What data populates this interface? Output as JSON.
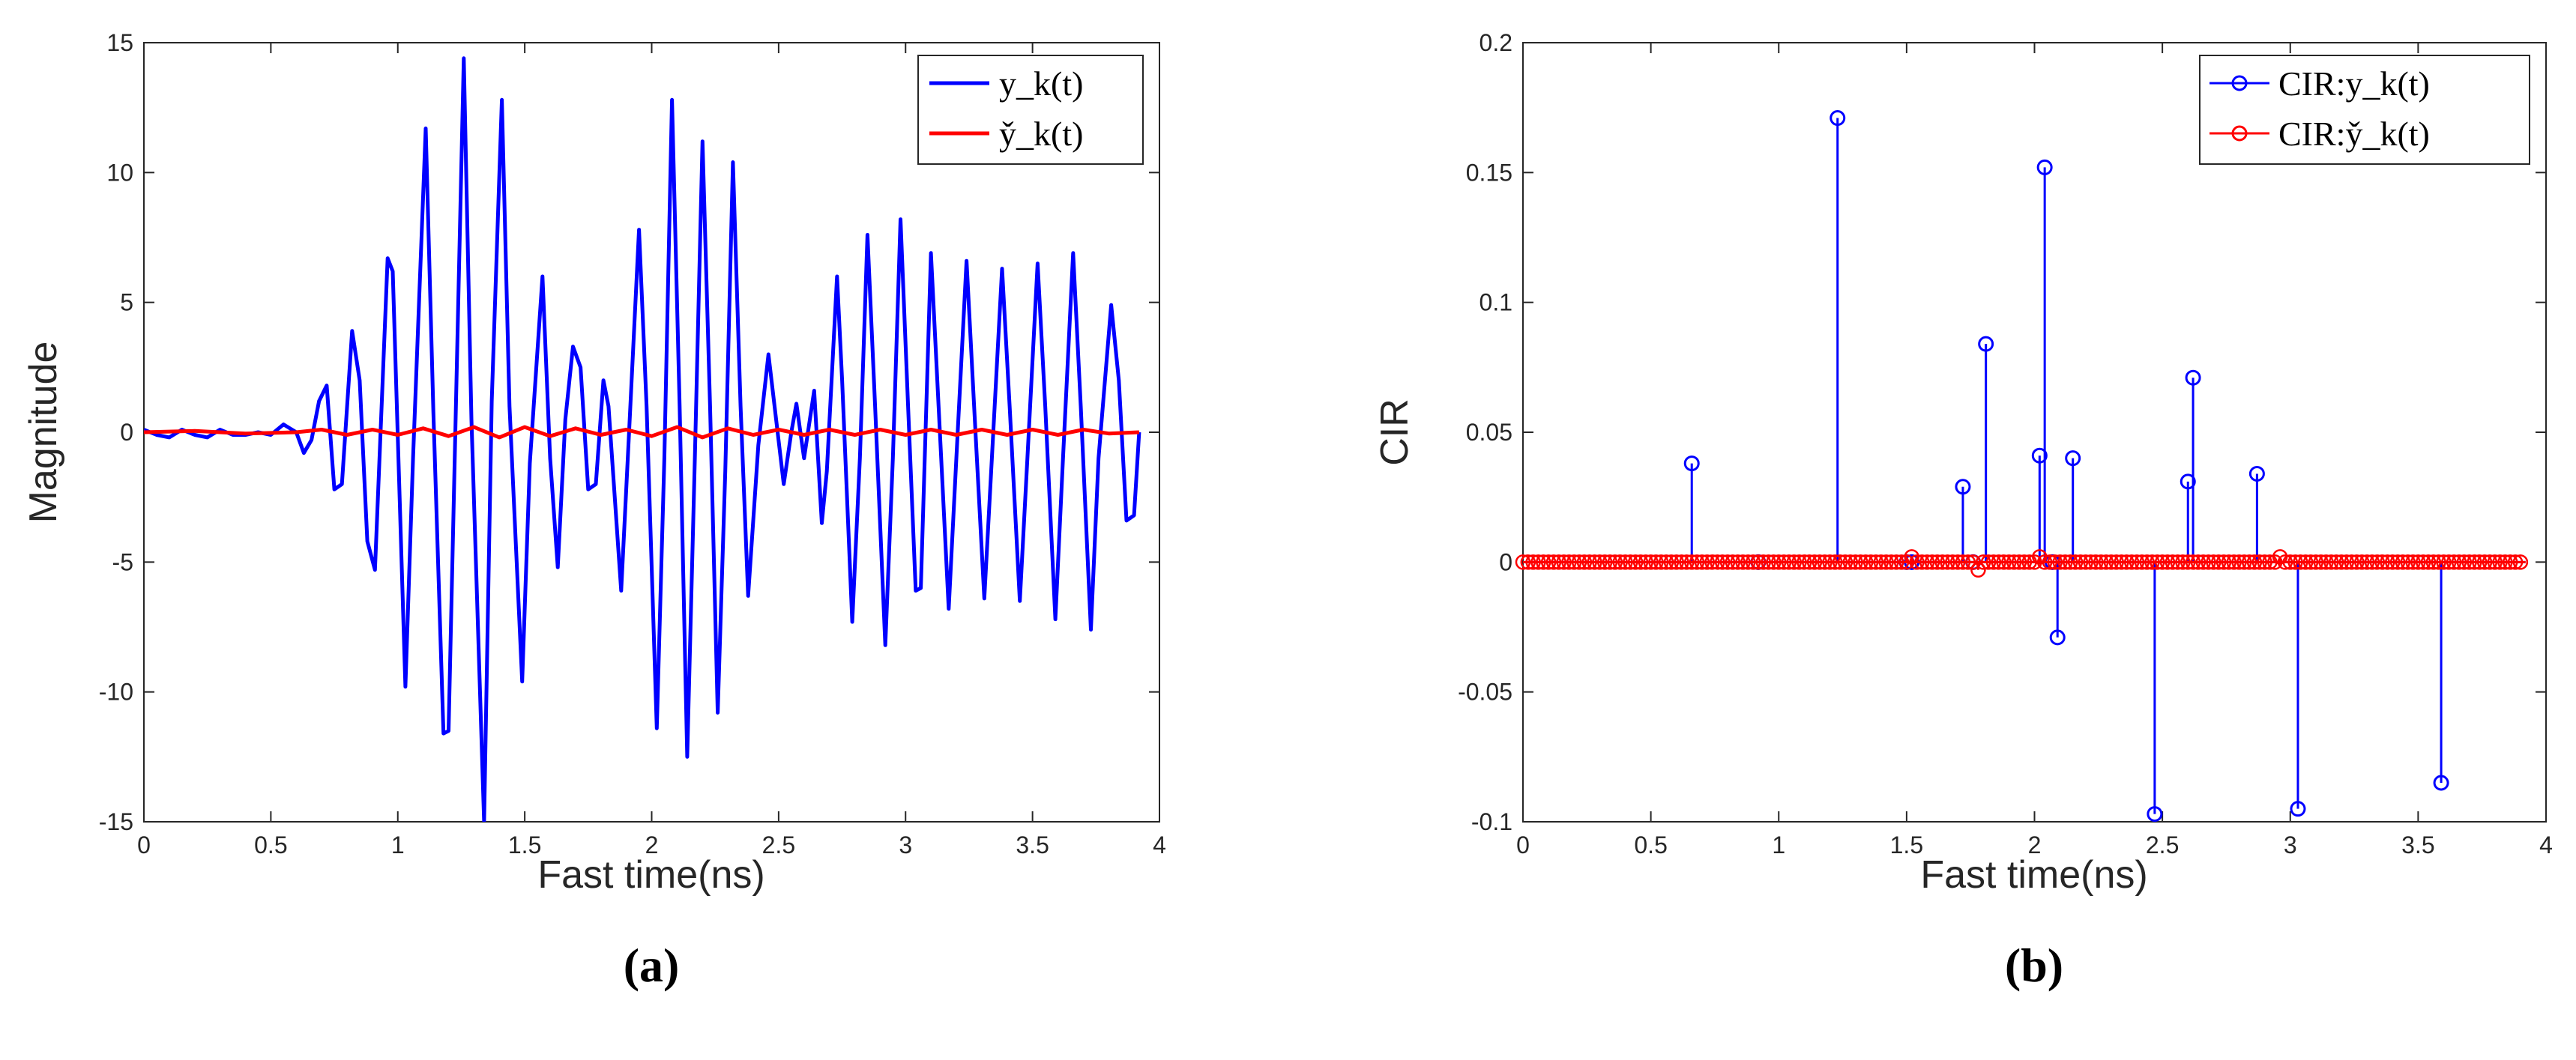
{
  "chart_data": [
    {
      "type": "line",
      "xlabel": "Fast time(ns)",
      "ylabel": "Magnitude",
      "caption": "(a)",
      "xlim": [
        0,
        4
      ],
      "ylim": [
        -15,
        15
      ],
      "xticks": [
        "0",
        "0.5",
        "1",
        "1.5",
        "2",
        "2.5",
        "3",
        "3.5",
        "4"
      ],
      "yticks": [
        "-15",
        "-10",
        "-5",
        "0",
        "5",
        "10",
        "15"
      ],
      "legend_position": "top-right",
      "series": [
        {
          "name": "y_k(t)",
          "color": "#0000ff",
          "points": [
            [
              0.0,
              0.1
            ],
            [
              0.05,
              -0.1
            ],
            [
              0.1,
              -0.2
            ],
            [
              0.15,
              0.1
            ],
            [
              0.2,
              -0.1
            ],
            [
              0.25,
              -0.2
            ],
            [
              0.3,
              0.1
            ],
            [
              0.35,
              -0.1
            ],
            [
              0.4,
              -0.1
            ],
            [
              0.45,
              0.0
            ],
            [
              0.5,
              -0.1
            ],
            [
              0.55,
              0.3
            ],
            [
              0.6,
              0.0
            ],
            [
              0.63,
              -0.8
            ],
            [
              0.66,
              -0.3
            ],
            [
              0.69,
              1.2
            ],
            [
              0.72,
              1.8
            ],
            [
              0.75,
              -2.2
            ],
            [
              0.78,
              -2.0
            ],
            [
              0.82,
              3.9
            ],
            [
              0.85,
              2.0
            ],
            [
              0.88,
              -4.2
            ],
            [
              0.91,
              -5.3
            ],
            [
              0.96,
              6.7
            ],
            [
              0.98,
              6.2
            ],
            [
              1.03,
              -9.8
            ],
            [
              1.06,
              -1.0
            ],
            [
              1.11,
              11.7
            ],
            [
              1.14,
              0.8
            ],
            [
              1.18,
              -11.6
            ],
            [
              1.2,
              -11.5
            ],
            [
              1.26,
              14.4
            ],
            [
              1.29,
              0.5
            ],
            [
              1.34,
              -15.0
            ],
            [
              1.37,
              1.2
            ],
            [
              1.41,
              12.8
            ],
            [
              1.44,
              1.0
            ],
            [
              1.49,
              -9.6
            ],
            [
              1.52,
              -1.2
            ],
            [
              1.57,
              6.0
            ],
            [
              1.6,
              -1.0
            ],
            [
              1.63,
              -5.2
            ],
            [
              1.66,
              0.5
            ],
            [
              1.69,
              3.3
            ],
            [
              1.72,
              2.5
            ],
            [
              1.75,
              -2.2
            ],
            [
              1.78,
              -2.0
            ],
            [
              1.81,
              2.0
            ],
            [
              1.83,
              1.0
            ],
            [
              1.88,
              -6.1
            ],
            [
              1.91,
              -0.2
            ],
            [
              1.95,
              7.8
            ],
            [
              1.98,
              1.0
            ],
            [
              2.02,
              -11.4
            ],
            [
              2.05,
              -1.0
            ],
            [
              2.08,
              12.8
            ],
            [
              2.11,
              1.0
            ],
            [
              2.14,
              -12.5
            ],
            [
              2.17,
              -1.0
            ],
            [
              2.2,
              11.2
            ],
            [
              2.23,
              1.0
            ],
            [
              2.26,
              -10.8
            ],
            [
              2.29,
              -1.5
            ],
            [
              2.32,
              10.4
            ],
            [
              2.35,
              1.0
            ],
            [
              2.38,
              -6.3
            ],
            [
              2.42,
              -0.5
            ],
            [
              2.46,
              3.0
            ],
            [
              2.49,
              0.5
            ],
            [
              2.52,
              -2.0
            ],
            [
              2.55,
              0.0
            ],
            [
              2.57,
              1.1
            ],
            [
              2.6,
              -1.0
            ],
            [
              2.64,
              1.6
            ],
            [
              2.67,
              -3.5
            ],
            [
              2.69,
              -1.5
            ],
            [
              2.73,
              6.0
            ],
            [
              2.75,
              2.0
            ],
            [
              2.79,
              -7.3
            ],
            [
              2.82,
              -1.0
            ],
            [
              2.85,
              7.6
            ],
            [
              2.88,
              1.0
            ],
            [
              2.92,
              -8.2
            ],
            [
              2.95,
              -1.0
            ],
            [
              2.98,
              8.2
            ],
            [
              3.01,
              1.0
            ],
            [
              3.04,
              -6.1
            ],
            [
              3.06,
              -6.0
            ],
            [
              3.1,
              6.9
            ],
            [
              3.13,
              1.0
            ],
            [
              3.17,
              -6.8
            ],
            [
              3.2,
              -1.0
            ],
            [
              3.24,
              6.6
            ],
            [
              3.27,
              1.0
            ],
            [
              3.31,
              -6.4
            ],
            [
              3.34,
              -1.0
            ],
            [
              3.38,
              6.3
            ],
            [
              3.41,
              1.0
            ],
            [
              3.45,
              -6.5
            ],
            [
              3.48,
              -1.0
            ],
            [
              3.52,
              6.5
            ],
            [
              3.55,
              1.0
            ],
            [
              3.59,
              -7.2
            ],
            [
              3.62,
              -1.0
            ],
            [
              3.66,
              6.9
            ],
            [
              3.69,
              1.0
            ],
            [
              3.73,
              -7.6
            ],
            [
              3.76,
              -1.0
            ],
            [
              3.81,
              4.9
            ],
            [
              3.84,
              2.0
            ],
            [
              3.87,
              -3.4
            ],
            [
              3.9,
              -3.2
            ],
            [
              3.92,
              0.0
            ]
          ]
        },
        {
          "name": "y̌_k(t)",
          "color": "#ff0000",
          "points": [
            [
              0.0,
              0.0
            ],
            [
              0.2,
              0.05
            ],
            [
              0.4,
              -0.05
            ],
            [
              0.6,
              0.0
            ],
            [
              0.7,
              0.1
            ],
            [
              0.8,
              -0.1
            ],
            [
              0.9,
              0.1
            ],
            [
              1.0,
              -0.1
            ],
            [
              1.1,
              0.15
            ],
            [
              1.2,
              -0.15
            ],
            [
              1.3,
              0.2
            ],
            [
              1.4,
              -0.2
            ],
            [
              1.5,
              0.2
            ],
            [
              1.6,
              -0.15
            ],
            [
              1.7,
              0.15
            ],
            [
              1.8,
              -0.1
            ],
            [
              1.9,
              0.1
            ],
            [
              2.0,
              -0.15
            ],
            [
              2.1,
              0.2
            ],
            [
              2.2,
              -0.2
            ],
            [
              2.3,
              0.15
            ],
            [
              2.4,
              -0.1
            ],
            [
              2.5,
              0.1
            ],
            [
              2.6,
              -0.1
            ],
            [
              2.7,
              0.1
            ],
            [
              2.8,
              -0.1
            ],
            [
              2.9,
              0.1
            ],
            [
              3.0,
              -0.1
            ],
            [
              3.1,
              0.1
            ],
            [
              3.2,
              -0.1
            ],
            [
              3.3,
              0.1
            ],
            [
              3.4,
              -0.1
            ],
            [
              3.5,
              0.1
            ],
            [
              3.6,
              -0.1
            ],
            [
              3.7,
              0.1
            ],
            [
              3.8,
              -0.05
            ],
            [
              3.92,
              0.0
            ]
          ]
        }
      ]
    },
    {
      "type": "stem",
      "xlabel": "Fast time(ns)",
      "ylabel": "CIR",
      "caption": "(b)",
      "xlim": [
        0,
        4
      ],
      "ylim": [
        -0.1,
        0.2
      ],
      "xticks": [
        "0",
        "0.5",
        "1",
        "1.5",
        "2",
        "2.5",
        "3",
        "3.5",
        "4"
      ],
      "yticks": [
        "-0.1",
        "-0.05",
        "0",
        "0.05",
        "0.1",
        "0.15",
        "0.2"
      ],
      "legend_position": "top-right",
      "series": [
        {
          "name": "CIR:y_k(t)",
          "color": "#0000ff",
          "x": [
            0.66,
            0.92,
            1.23,
            1.5,
            1.52,
            1.72,
            1.76,
            1.81,
            2.02,
            2.04,
            2.07,
            2.09,
            2.15,
            2.47,
            2.6,
            2.62,
            2.87,
            3.03,
            3.59
          ],
          "y": [
            0.038,
            0.0,
            0.171,
            0.0,
            0.0,
            0.029,
            0.0,
            0.084,
            0.041,
            0.152,
            0.0,
            -0.029,
            0.04,
            -0.097,
            0.031,
            0.071,
            0.034,
            -0.095,
            -0.085
          ]
        },
        {
          "name": "CIR:y̌_k(t)",
          "color": "#ff0000",
          "x_start": 0.0,
          "x_step": 0.02,
          "count": 196,
          "nonzero": [
            [
              1.52,
              0.002
            ],
            [
              1.78,
              -0.003
            ],
            [
              2.02,
              0.002
            ],
            [
              2.96,
              0.002
            ]
          ]
        }
      ]
    }
  ]
}
